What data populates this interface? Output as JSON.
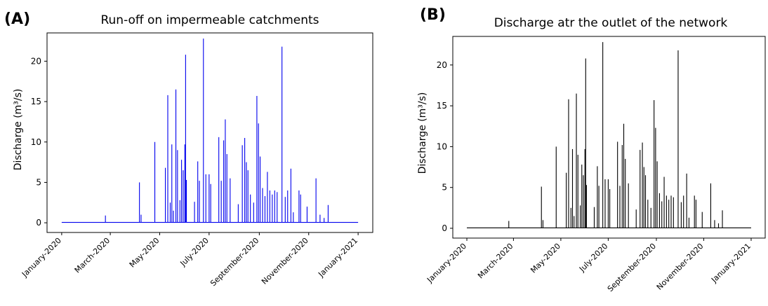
{
  "chart_data": [
    {
      "panel_label": "(A)",
      "type": "line",
      "title": "Run-off on impermeable catchments",
      "ylabel": "Discharge (m³/s)",
      "xlabel": "",
      "color": "#0000ee",
      "x_range": [
        "2020-01-01",
        "2021-01-01"
      ],
      "ylim": [
        -1.2,
        23.5
      ],
      "yticks": [
        0,
        5,
        10,
        15,
        20
      ],
      "xticks": [
        "January-2020",
        "March-2020",
        "May-2020",
        "July-2020",
        "September-2020",
        "November-2020",
        "January-2021"
      ],
      "xtick_dates": [
        "2020-01-01",
        "2020-03-01",
        "2020-05-01",
        "2020-07-01",
        "2020-09-01",
        "2020-11-01",
        "2021-01-01"
      ],
      "baseline": 0.05,
      "peaks": [
        [
          "2020-02-24",
          0.9
        ],
        [
          "2020-04-06",
          5.0
        ],
        [
          "2020-04-08",
          1.0
        ],
        [
          "2020-04-25",
          10.0
        ],
        [
          "2020-05-08",
          6.8
        ],
        [
          "2020-05-11",
          15.8
        ],
        [
          "2020-05-14",
          2.5
        ],
        [
          "2020-05-16",
          9.7
        ],
        [
          "2020-05-18",
          1.5
        ],
        [
          "2020-05-21",
          16.5
        ],
        [
          "2020-05-23",
          9.0
        ],
        [
          "2020-05-26",
          2.8
        ],
        [
          "2020-05-28",
          7.8
        ],
        [
          "2020-05-30",
          6.5
        ],
        [
          "2020-06-01",
          9.7
        ],
        [
          "2020-06-02",
          20.8
        ],
        [
          "2020-06-03",
          5.3
        ],
        [
          "2020-06-13",
          2.6
        ],
        [
          "2020-06-17",
          7.6
        ],
        [
          "2020-06-19",
          5.2
        ],
        [
          "2020-06-24",
          22.8
        ],
        [
          "2020-06-27",
          6.0
        ],
        [
          "2020-07-01",
          6.0
        ],
        [
          "2020-07-03",
          4.8
        ],
        [
          "2020-07-13",
          10.6
        ],
        [
          "2020-07-16",
          5.2
        ],
        [
          "2020-07-19",
          10.2
        ],
        [
          "2020-07-21",
          12.8
        ],
        [
          "2020-07-23",
          8.5
        ],
        [
          "2020-07-27",
          5.5
        ],
        [
          "2020-08-06",
          2.3
        ],
        [
          "2020-08-11",
          9.6
        ],
        [
          "2020-08-14",
          10.5
        ],
        [
          "2020-08-16",
          7.5
        ],
        [
          "2020-08-18",
          6.5
        ],
        [
          "2020-08-21",
          3.5
        ],
        [
          "2020-08-25",
          2.5
        ],
        [
          "2020-08-29",
          15.7
        ],
        [
          "2020-08-31",
          12.3
        ],
        [
          "2020-09-02",
          8.2
        ],
        [
          "2020-09-05",
          4.3
        ],
        [
          "2020-09-08",
          3.3
        ],
        [
          "2020-09-11",
          6.3
        ],
        [
          "2020-09-14",
          4.0
        ],
        [
          "2020-09-17",
          3.5
        ],
        [
          "2020-09-20",
          4.0
        ],
        [
          "2020-09-23",
          3.8
        ],
        [
          "2020-09-29",
          21.8
        ],
        [
          "2020-10-03",
          3.2
        ],
        [
          "2020-10-06",
          4.0
        ],
        [
          "2020-10-10",
          6.7
        ],
        [
          "2020-10-13",
          1.3
        ],
        [
          "2020-10-20",
          4.0
        ],
        [
          "2020-10-22",
          3.5
        ],
        [
          "2020-10-30",
          2.0
        ],
        [
          "2020-11-10",
          5.5
        ],
        [
          "2020-11-15",
          1.0
        ],
        [
          "2020-11-20",
          0.6
        ],
        [
          "2020-11-25",
          2.2
        ]
      ]
    },
    {
      "panel_label": "(B)",
      "type": "line",
      "title": "Discharge atr the outlet of the network",
      "ylabel": "Discharge (m³/s)",
      "xlabel": "",
      "color": "#000000",
      "x_range": [
        "2020-01-01",
        "2021-01-01"
      ],
      "ylim": [
        -1.2,
        23.5
      ],
      "yticks": [
        0,
        5,
        10,
        15,
        20
      ],
      "xticks": [
        "January-2020",
        "March-2020",
        "May-2020",
        "July-2020",
        "September-2020",
        "November-2020",
        "January-2021"
      ],
      "xtick_dates": [
        "2020-01-01",
        "2020-03-01",
        "2020-05-01",
        "2020-07-01",
        "2020-09-01",
        "2020-11-01",
        "2021-01-01"
      ],
      "baseline": 0.05,
      "peaks": [
        [
          "2020-02-24",
          0.9
        ],
        [
          "2020-04-06",
          5.1
        ],
        [
          "2020-04-08",
          1.0
        ],
        [
          "2020-04-25",
          10.0
        ],
        [
          "2020-05-08",
          6.8
        ],
        [
          "2020-05-11",
          15.8
        ],
        [
          "2020-05-14",
          2.5
        ],
        [
          "2020-05-16",
          9.7
        ],
        [
          "2020-05-18",
          1.5
        ],
        [
          "2020-05-21",
          16.5
        ],
        [
          "2020-05-23",
          9.0
        ],
        [
          "2020-05-26",
          2.8
        ],
        [
          "2020-05-28",
          7.8
        ],
        [
          "2020-05-30",
          6.5
        ],
        [
          "2020-06-01",
          9.7
        ],
        [
          "2020-06-02",
          20.8
        ],
        [
          "2020-06-03",
          5.3
        ],
        [
          "2020-06-13",
          2.6
        ],
        [
          "2020-06-17",
          7.6
        ],
        [
          "2020-06-19",
          5.2
        ],
        [
          "2020-06-24",
          22.8
        ],
        [
          "2020-06-27",
          6.0
        ],
        [
          "2020-07-01",
          6.0
        ],
        [
          "2020-07-03",
          4.8
        ],
        [
          "2020-07-13",
          10.6
        ],
        [
          "2020-07-16",
          5.2
        ],
        [
          "2020-07-19",
          10.2
        ],
        [
          "2020-07-21",
          12.8
        ],
        [
          "2020-07-23",
          8.5
        ],
        [
          "2020-07-27",
          5.5
        ],
        [
          "2020-08-06",
          2.3
        ],
        [
          "2020-08-11",
          9.6
        ],
        [
          "2020-08-14",
          10.5
        ],
        [
          "2020-08-16",
          7.5
        ],
        [
          "2020-08-18",
          6.5
        ],
        [
          "2020-08-21",
          3.5
        ],
        [
          "2020-08-25",
          2.5
        ],
        [
          "2020-08-29",
          15.7
        ],
        [
          "2020-08-31",
          12.3
        ],
        [
          "2020-09-02",
          8.2
        ],
        [
          "2020-09-05",
          4.3
        ],
        [
          "2020-09-08",
          3.3
        ],
        [
          "2020-09-11",
          6.3
        ],
        [
          "2020-09-14",
          4.0
        ],
        [
          "2020-09-17",
          3.5
        ],
        [
          "2020-09-20",
          4.0
        ],
        [
          "2020-09-23",
          3.8
        ],
        [
          "2020-09-29",
          21.8
        ],
        [
          "2020-10-03",
          3.2
        ],
        [
          "2020-10-06",
          4.0
        ],
        [
          "2020-10-10",
          6.7
        ],
        [
          "2020-10-13",
          1.3
        ],
        [
          "2020-10-20",
          4.0
        ],
        [
          "2020-10-22",
          3.5
        ],
        [
          "2020-10-30",
          2.0
        ],
        [
          "2020-11-10",
          5.5
        ],
        [
          "2020-11-15",
          1.0
        ],
        [
          "2020-11-20",
          0.6
        ],
        [
          "2020-11-25",
          2.2
        ]
      ]
    }
  ]
}
